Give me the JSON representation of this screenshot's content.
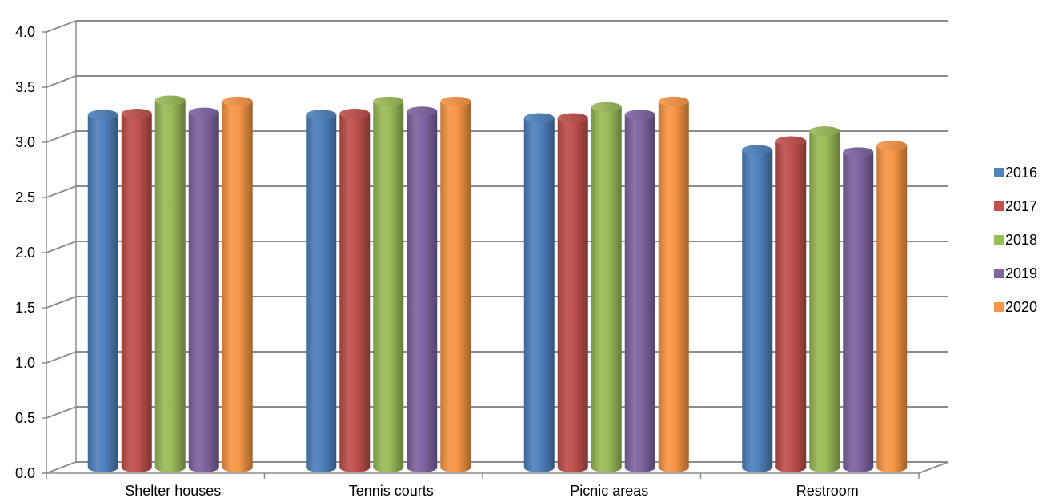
{
  "chart_data": {
    "type": "bar",
    "categories": [
      "Shelter houses",
      "Tennis courts",
      "Picnic areas",
      "Restroom"
    ],
    "series": [
      {
        "name": "2016",
        "color": "#4F81BD",
        "values": [
          3.2,
          3.2,
          3.17,
          2.88
        ]
      },
      {
        "name": "2017",
        "color": "#C0504D",
        "values": [
          3.21,
          3.21,
          3.17,
          2.96
        ]
      },
      {
        "name": "2018",
        "color": "#9BBB59",
        "values": [
          3.33,
          3.32,
          3.27,
          3.05
        ]
      },
      {
        "name": "2019",
        "color": "#8064A2",
        "values": [
          3.22,
          3.23,
          3.2,
          2.86
        ]
      },
      {
        "name": "2020",
        "color": "#F79646",
        "values": [
          3.32,
          3.32,
          3.32,
          2.92
        ]
      }
    ],
    "ylim": [
      0,
      4
    ],
    "yticks": [
      "0.0",
      "0.5",
      "1.0",
      "1.5",
      "2.0",
      "2.5",
      "3.0",
      "3.5",
      "4.0"
    ],
    "grid": true,
    "legend_position": "right",
    "style": "3d-cylinder"
  }
}
